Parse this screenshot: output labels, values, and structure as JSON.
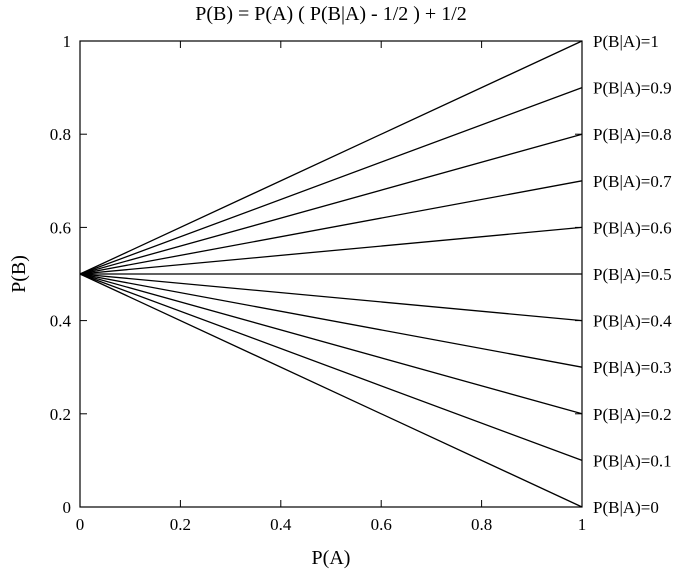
{
  "chart_data": {
    "type": "line",
    "title": "P(B) = P(A) ( P(B|A) - 1/2 ) + 1/2",
    "xlabel": "P(A)",
    "ylabel": "P(B)",
    "xlim": [
      0,
      1
    ],
    "ylim": [
      0,
      1
    ],
    "x_ticks": [
      0,
      0.2,
      0.4,
      0.6,
      0.8,
      1
    ],
    "x_tick_labels": [
      "0",
      "0.2",
      "0.4",
      "0.6",
      "0.8",
      "1"
    ],
    "y_ticks": [
      0,
      0.2,
      0.4,
      0.6,
      0.8,
      1
    ],
    "y_tick_labels": [
      "0",
      "0.2",
      "0.4",
      "0.6",
      "0.8",
      "1"
    ],
    "grid": false,
    "legend": "none (series labeled at right end of each line)",
    "line_color": "#000000",
    "series": [
      {
        "name": "P(B|A)=1",
        "x": [
          0,
          1
        ],
        "values": [
          0.5,
          1.0
        ]
      },
      {
        "name": "P(B|A)=0.9",
        "x": [
          0,
          1
        ],
        "values": [
          0.5,
          0.9
        ]
      },
      {
        "name": "P(B|A)=0.8",
        "x": [
          0,
          1
        ],
        "values": [
          0.5,
          0.8
        ]
      },
      {
        "name": "P(B|A)=0.7",
        "x": [
          0,
          1
        ],
        "values": [
          0.5,
          0.7
        ]
      },
      {
        "name": "P(B|A)=0.6",
        "x": [
          0,
          1
        ],
        "values": [
          0.5,
          0.6
        ]
      },
      {
        "name": "P(B|A)=0.5",
        "x": [
          0,
          1
        ],
        "values": [
          0.5,
          0.5
        ]
      },
      {
        "name": "P(B|A)=0.4",
        "x": [
          0,
          1
        ],
        "values": [
          0.5,
          0.4
        ]
      },
      {
        "name": "P(B|A)=0.3",
        "x": [
          0,
          1
        ],
        "values": [
          0.5,
          0.3
        ]
      },
      {
        "name": "P(B|A)=0.2",
        "x": [
          0,
          1
        ],
        "values": [
          0.5,
          0.2
        ]
      },
      {
        "name": "P(B|A)=0.1",
        "x": [
          0,
          1
        ],
        "values": [
          0.5,
          0.1
        ]
      },
      {
        "name": "P(B|A)=0",
        "x": [
          0,
          1
        ],
        "values": [
          0.5,
          0.0
        ]
      }
    ]
  }
}
